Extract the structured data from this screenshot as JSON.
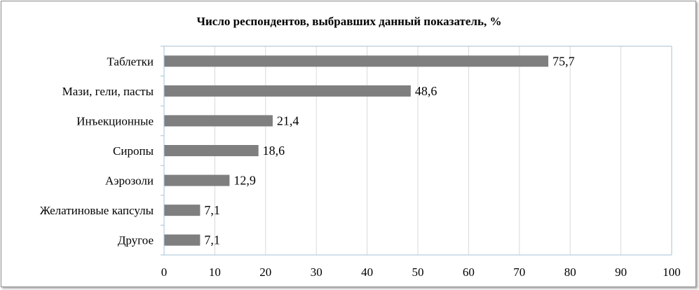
{
  "chart_data": {
    "type": "bar",
    "orientation": "horizontal",
    "title": "Число респондентов, выбравших данный показатель, %",
    "categories": [
      "Таблетки",
      "Мази, гели, пасты",
      "Инъекционные",
      "Сиропы",
      "Аэрозоли",
      "Желатиновые капсулы",
      "Другое"
    ],
    "values": [
      75.7,
      48.6,
      21.4,
      18.6,
      12.9,
      7.1,
      7.1
    ],
    "value_labels": [
      "75,7",
      "48,6",
      "21,4",
      "18,6",
      "12,9",
      "7,1",
      "7,1"
    ],
    "xlim": [
      0,
      100
    ],
    "x_ticks": [
      "0",
      "10",
      "20",
      "30",
      "40",
      "50",
      "60",
      "70",
      "80",
      "90",
      "100"
    ],
    "grid": true,
    "legend": "none",
    "bar_color": "#7f7f7f",
    "grid_color": "#d9d9d9",
    "axis_color": "#a6c2d6"
  }
}
